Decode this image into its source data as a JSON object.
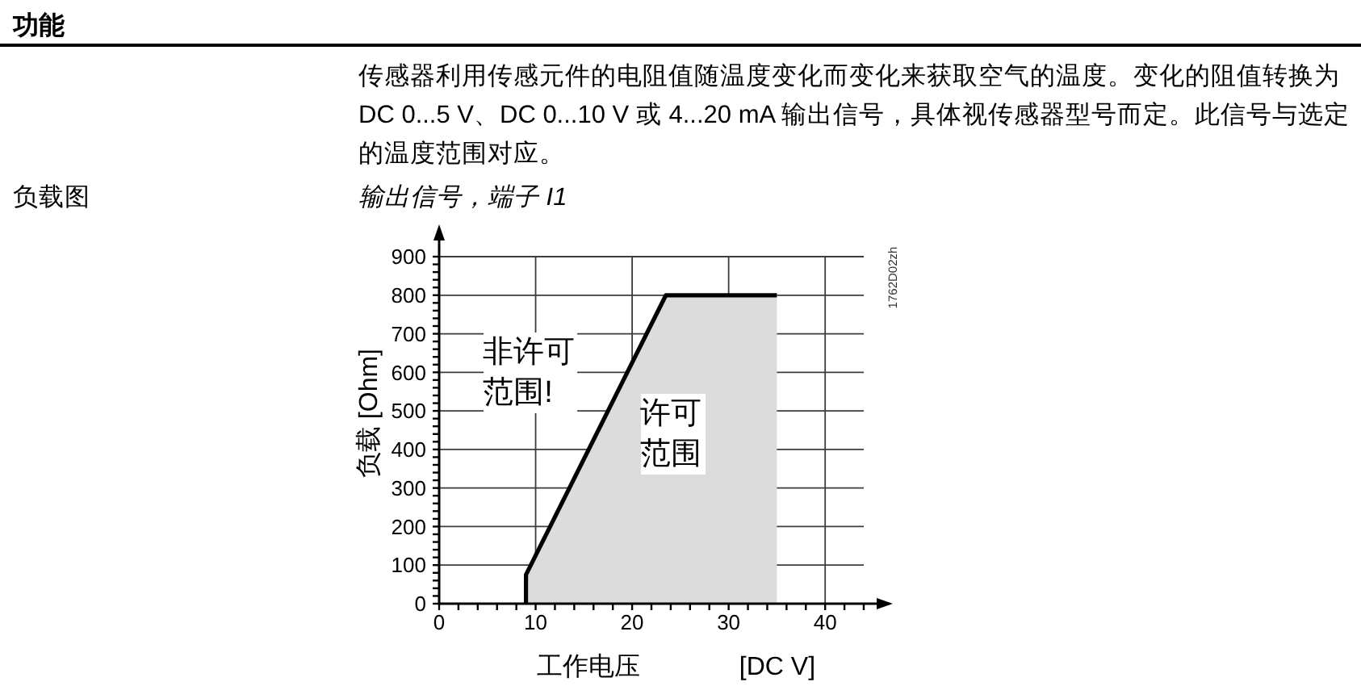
{
  "chart_data": {
    "type": "area",
    "title": "输出信号，端子 I1",
    "xlabel": "工作电压 [DC V]",
    "ylabel": "负载 [Ohm]",
    "annotations": [
      "功能",
      "传感器利用传感元件的电阻值随温度变化而变化来获取空气的温度。变化的阻值转换为 DC 0...5 V、DC 0...10 V 或 4...20 mA 输出信号，具体视传感器型号而定。此信号与选定的温度范围对应。",
      "负载图",
      "1762D02zh",
      "非许可范围!",
      "许可范围"
    ],
    "x": [
      9,
      9,
      23.5,
      35
    ],
    "series": [
      {
        "color": "#dcdcdc",
        "values": [
          0,
          75,
          800,
          800
        ]
      }
    ],
    "xlim": [
      0,
      44
    ],
    "xticks": [
      0,
      {
        "value": 2,
        "label": null
      },
      {
        "value": 4,
        "label": null
      },
      {
        "value": 6,
        "label": null
      },
      {
        "value": 8,
        "label": null
      },
      10,
      {
        "value": 12,
        "label": null
      },
      {
        "value": 14,
        "label": null
      },
      {
        "value": 16,
        "label": null
      },
      {
        "value": 18,
        "label": null
      },
      20,
      {
        "value": 22,
        "label": null
      },
      {
        "value": 24,
        "label": null
      },
      {
        "value": 26,
        "label": null
      },
      {
        "value": 28,
        "label": null
      },
      30,
      {
        "value": 32,
        "label": null
      },
      {
        "value": 34,
        "label": null
      },
      {
        "value": 36,
        "label": null
      },
      {
        "value": 38,
        "label": null
      },
      40,
      {
        "value": 42,
        "label": null
      },
      {
        "value": 44,
        "label": null
      }
    ],
    "ylim": [
      0,
      900
    ],
    "yticks": [
      0,
      {
        "value": 20,
        "label": null
      },
      {
        "value": 40,
        "label": null
      },
      {
        "value": 60,
        "label": null
      },
      {
        "value": 80,
        "label": null
      },
      100,
      {
        "value": 120,
        "label": null
      },
      {
        "value": 140,
        "label": null
      },
      {
        "value": 160,
        "label": null
      },
      {
        "value": 180,
        "label": null
      },
      200,
      {
        "value": 220,
        "label": null
      },
      {
        "value": 240,
        "label": null
      },
      {
        "value": 260,
        "label": null
      },
      {
        "value": 280,
        "label": null
      },
      300,
      {
        "value": 320,
        "label": null
      },
      {
        "value": 340,
        "label": null
      },
      {
        "value": 360,
        "label": null
      },
      {
        "value": 380,
        "label": null
      },
      400,
      {
        "value": 420,
        "label": null
      },
      {
        "value": 440,
        "label": null
      },
      {
        "value": 460,
        "label": null
      },
      {
        "value": 480,
        "label": null
      },
      500,
      {
        "value": 520,
        "label": null
      },
      {
        "value": 540,
        "label": null
      },
      {
        "value": 560,
        "label": null
      },
      {
        "value": 580,
        "label": null
      },
      600,
      {
        "value": 620,
        "label": null
      },
      {
        "value": 640,
        "label": null
      },
      {
        "value": 660,
        "label": null
      },
      {
        "value": 680,
        "label": null
      },
      700,
      {
        "value": 720,
        "label": null
      },
      {
        "value": 740,
        "label": null
      },
      {
        "value": 760,
        "label": null
      },
      {
        "value": 780,
        "label": null
      },
      800,
      {
        "value": 820,
        "label": null
      },
      {
        "value": 840,
        "label": null
      },
      {
        "value": 860,
        "label": null
      },
      {
        "value": 880,
        "label": null
      },
      900
    ],
    "grid": true
  }
}
